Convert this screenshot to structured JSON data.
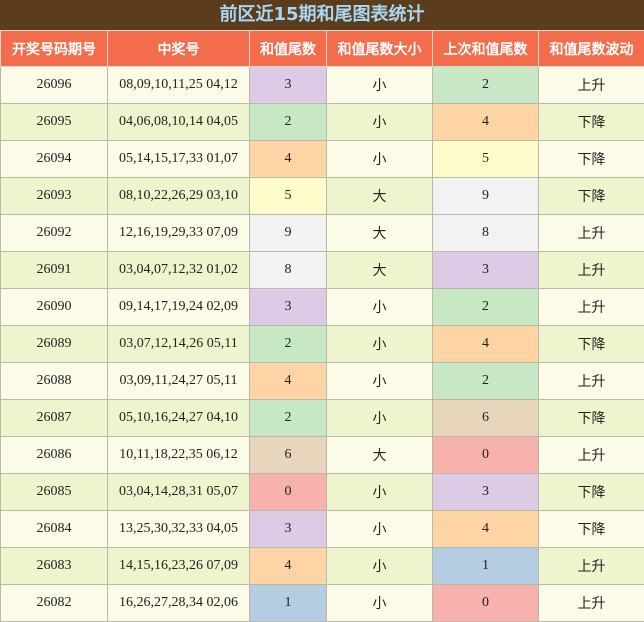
{
  "title": "前区近15期和尾图表统计",
  "table": {
    "header": [
      "开奖号码期号",
      "中奖号",
      "和值尾数",
      "和值尾数大小",
      "上次和值尾数",
      "和值尾数波动"
    ],
    "rows": [
      [
        "26096",
        "08,09,10,11,25 04,12",
        "3",
        "小",
        "2",
        "上升"
      ],
      [
        "26095",
        "04,06,08,10,14 04,05",
        "2",
        "小",
        "4",
        "下降"
      ],
      [
        "26094",
        "05,14,15,17,33 01,07",
        "4",
        "小",
        "5",
        "下降"
      ],
      [
        "26093",
        "08,10,22,26,29 03,10",
        "5",
        "大",
        "9",
        "下降"
      ],
      [
        "26092",
        "12,16,19,29,33 07,09",
        "9",
        "大",
        "8",
        "上升"
      ],
      [
        "26091",
        "03,04,07,12,32 01,02",
        "8",
        "大",
        "3",
        "上升"
      ],
      [
        "26090",
        "09,14,17,19,24 02,09",
        "3",
        "小",
        "2",
        "上升"
      ],
      [
        "26089",
        "03,07,12,14,26 05,11",
        "2",
        "小",
        "4",
        "下降"
      ],
      [
        "26088",
        "03,09,11,24,27 05,11",
        "4",
        "小",
        "2",
        "上升"
      ],
      [
        "26087",
        "05,10,16,24,27 04,10",
        "2",
        "小",
        "6",
        "下降"
      ],
      [
        "26086",
        "10,11,18,22,35 06,12",
        "6",
        "大",
        "0",
        "上升"
      ],
      [
        "26085",
        "03,04,14,28,31 05,07",
        "0",
        "小",
        "3",
        "下降"
      ],
      [
        "26084",
        "13,25,30,32,33 04,05",
        "3",
        "小",
        "4",
        "下降"
      ],
      [
        "26083",
        "14,15,16,23,26 07,09",
        "4",
        "小",
        "1",
        "上升"
      ],
      [
        "26082",
        "16,26,27,28,34 02,06",
        "1",
        "小",
        "0",
        "上升"
      ]
    ]
  },
  "digit_colors": {
    "0": "#f7b2ad",
    "1": "#b4cde2",
    "2": "#c8e7c4",
    "3": "#ddcbe5",
    "4": "#fdd4a4",
    "5": "#fffccb",
    "6": "#e7d6bc",
    "7": "#f2f2f2",
    "8": "#f2f2f2",
    "9": "#f2f2f2"
  }
}
